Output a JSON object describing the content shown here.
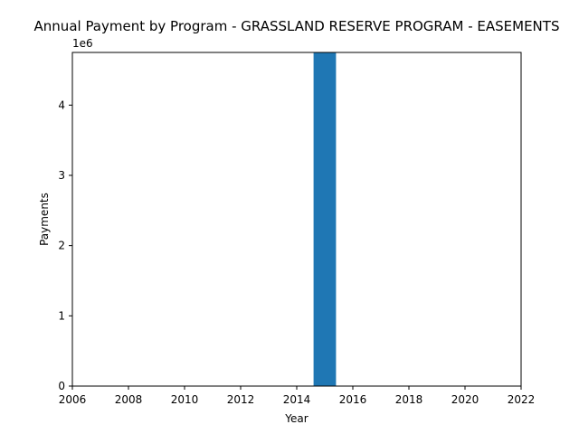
{
  "chart_data": {
    "type": "bar",
    "title": "Annual Payment by Program - GRASSLAND RESERVE PROGRAM - EASEMENTS",
    "xlabel": "Year",
    "ylabel": "Payments",
    "y_offset_label": "1e6",
    "x": [
      2015
    ],
    "values": [
      4750000
    ],
    "bar_width": 0.8,
    "xlim": [
      2006,
      2022
    ],
    "ylim": [
      0,
      4750000
    ],
    "x_ticks": [
      2006,
      2008,
      2010,
      2012,
      2014,
      2016,
      2018,
      2020,
      2022
    ],
    "x_tick_labels": [
      "2006",
      "2008",
      "2010",
      "2012",
      "2014",
      "2016",
      "2018",
      "2020",
      "2022"
    ],
    "y_ticks": [
      0,
      1000000,
      2000000,
      3000000,
      4000000
    ],
    "y_tick_labels": [
      "0",
      "1",
      "2",
      "3",
      "4"
    ],
    "grid": false,
    "bar_color": "#1f77b4"
  }
}
